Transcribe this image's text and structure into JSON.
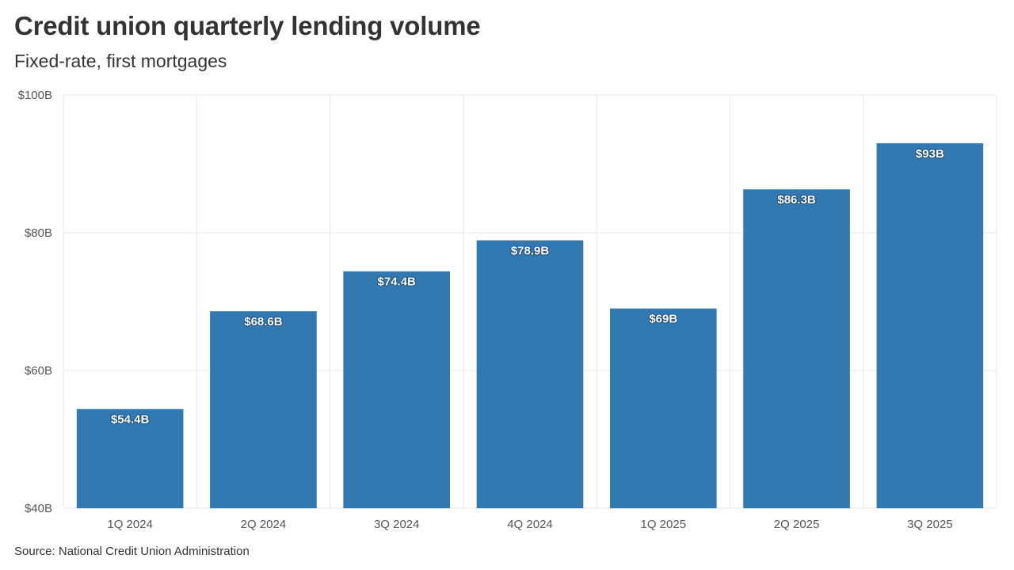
{
  "header": {
    "title": "Credit union quarterly lending volume",
    "subtitle": "Fixed-rate, first mortgages"
  },
  "footer": {
    "source": "Source: National Credit Union Administration"
  },
  "colors": {
    "bar": "#3179b0",
    "grid": "#e6e6e6",
    "text": "#333333"
  },
  "chart_data": {
    "type": "bar",
    "title": "Credit union quarterly lending volume",
    "subtitle": "Fixed-rate, first mortgages",
    "xlabel": "",
    "ylabel": "",
    "categories": [
      "1Q 2024",
      "2Q 2024",
      "3Q 2024",
      "4Q 2024",
      "1Q 2025",
      "2Q 2025",
      "3Q 2025"
    ],
    "values": [
      54.4,
      68.6,
      74.4,
      78.9,
      69,
      86.3,
      93
    ],
    "value_labels": [
      "$54.4B",
      "$68.6B",
      "$74.4B",
      "$78.9B",
      "$69B",
      "$86.3B",
      "$93B"
    ],
    "ylim": [
      40,
      100
    ],
    "yticks": [
      40,
      60,
      80,
      100
    ],
    "ytick_labels": [
      "$40B",
      "$60B",
      "$80B",
      "$100B"
    ],
    "grid": true,
    "units": "billions of dollars"
  }
}
